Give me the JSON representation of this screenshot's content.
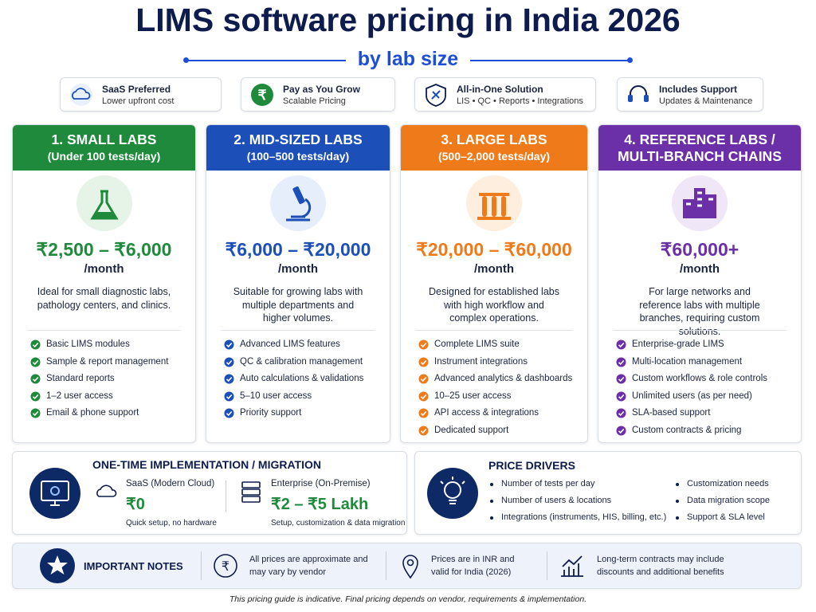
{
  "header": {
    "title": "LIMS software pricing in India 2026",
    "subtitle": "by lab size"
  },
  "badges": [
    {
      "title": "SaaS Preferred",
      "subtitle": "Lower upfront cost"
    },
    {
      "title": "Pay as You Grow",
      "subtitle": "Scalable Pricing"
    },
    {
      "title": "All-in-One Solution",
      "subtitle": "LIS • QC • Reports • Integrations"
    },
    {
      "title": "Includes Support",
      "subtitle": "Updates & Maintenance"
    }
  ],
  "tiers": [
    {
      "heading": "1. SMALL LABS",
      "subheading": "(Under 100 tests/day)",
      "price": "₹2,500 – ₹6,000",
      "period": "/month",
      "description": "Ideal for small diagnostic labs, pathology centers, and clinics.",
      "features": [
        "Basic LIMS modules",
        "Sample & report management",
        "Standard reports",
        "1–2 user access",
        "Email & phone support"
      ]
    },
    {
      "heading": "2. MID-SIZED LABS",
      "subheading": "(100–500 tests/day)",
      "price": "₹6,000 – ₹20,000",
      "period": "/month",
      "description": "Suitable for growing labs with multiple departments and higher volumes.",
      "features": [
        "Advanced LIMS features",
        "QC & calibration management",
        "Auto calculations & validations",
        "5–10 user access",
        "Priority support"
      ]
    },
    {
      "heading": "3. LARGE LABS",
      "subheading": "(500–2,000 tests/day)",
      "price": "₹20,000 – ₹60,000",
      "period": "/month",
      "description": "Designed for established labs with high workflow and complex operations.",
      "features": [
        "Complete LIMS suite",
        "Instrument integrations",
        "Advanced analytics & dashboards",
        "10–25 user access",
        "API access & integrations",
        "Dedicated support"
      ]
    },
    {
      "heading": "4. REFERENCE LABS / MULTI-BRANCH CHAINS",
      "price": "₹60,000+",
      "period": "/month",
      "description": "For large networks and reference labs with multiple branches, requiring custom solutions.",
      "features": [
        "Enterprise-grade LIMS",
        "Multi-location management",
        "Custom workflows & role controls",
        "Unlimited users (as per need)",
        "SLA-based support",
        "Custom contracts & pricing"
      ]
    }
  ],
  "implementation": {
    "title": "ONE-TIME IMPLEMENTATION / MIGRATION",
    "options": [
      {
        "name": "SaaS (Modern Cloud)",
        "price": "₹0",
        "note": "Quick setup, no hardware"
      },
      {
        "name": "Enterprise (On-Premise)",
        "price": "₹2 – ₹5 Lakh",
        "note": "Setup, customization & data migration"
      }
    ]
  },
  "price_drivers": {
    "title": "PRICE DRIVERS",
    "items": [
      "Number of tests per day",
      "Number of users & locations",
      "Integrations (instruments, HIS, billing, etc.)",
      "Customization needs",
      "Data migration scope",
      "Support & SLA level"
    ]
  },
  "notes": {
    "title": "IMPORTANT NOTES",
    "items": [
      "All prices are approximate and may vary by vendor",
      "Prices are in INR and valid for India (2026)",
      "Long-term contracts may include discounts and additional benefits"
    ]
  },
  "footer": "This pricing guide is indicative. Final pricing depends on vendor, requirements & implementation."
}
